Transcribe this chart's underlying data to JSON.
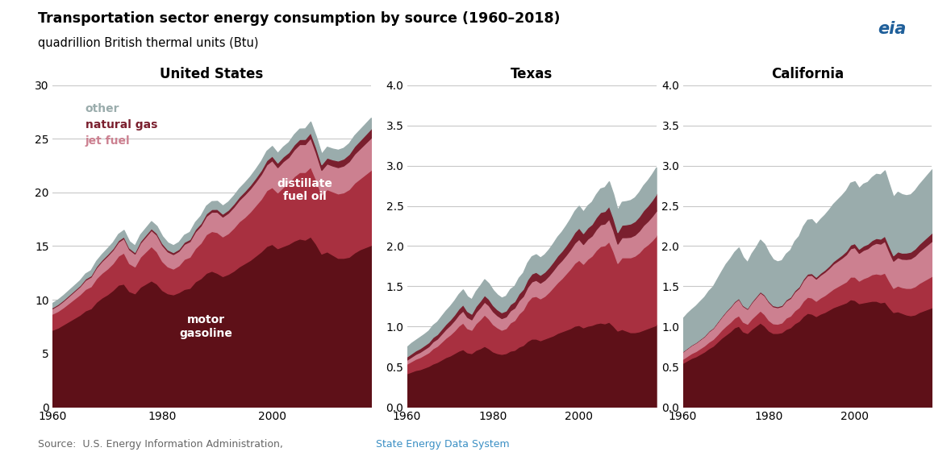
{
  "title": "Transportation sector energy consumption by source (1960–2018)",
  "subtitle": "quadrillion British thermal units (Btu)",
  "panels": [
    "United States",
    "Texas",
    "California"
  ],
  "years": [
    1960,
    1961,
    1962,
    1963,
    1964,
    1965,
    1966,
    1967,
    1968,
    1969,
    1970,
    1971,
    1972,
    1973,
    1974,
    1975,
    1976,
    1977,
    1978,
    1979,
    1980,
    1981,
    1982,
    1983,
    1984,
    1985,
    1986,
    1987,
    1988,
    1989,
    1990,
    1991,
    1992,
    1993,
    1994,
    1995,
    1996,
    1997,
    1998,
    1999,
    2000,
    2001,
    2002,
    2003,
    2004,
    2005,
    2006,
    2007,
    2008,
    2009,
    2010,
    2011,
    2012,
    2013,
    2014,
    2015,
    2016,
    2017,
    2018
  ],
  "colors": {
    "motor_gasoline": "#5e1018",
    "distillate_fuel_oil": "#a83040",
    "jet_fuel": "#cc8090",
    "natural_gas": "#7a1f2e",
    "other": "#9aacac"
  },
  "us_motor_gasoline": [
    7.2,
    7.4,
    7.7,
    8.0,
    8.3,
    8.6,
    9.0,
    9.2,
    9.8,
    10.2,
    10.5,
    10.9,
    11.4,
    11.5,
    10.8,
    10.6,
    11.2,
    11.5,
    11.8,
    11.5,
    10.9,
    10.6,
    10.5,
    10.7,
    11.0,
    11.1,
    11.7,
    12.0,
    12.5,
    12.7,
    12.5,
    12.2,
    12.4,
    12.7,
    13.1,
    13.4,
    13.7,
    14.1,
    14.5,
    15.0,
    15.2,
    14.8,
    15.0,
    15.2,
    15.5,
    15.7,
    15.6,
    15.9,
    15.2,
    14.3,
    14.5,
    14.2,
    13.9,
    13.9,
    14.0,
    14.4,
    14.7,
    14.9,
    15.1
  ],
  "us_distillate": [
    1.5,
    1.55,
    1.6,
    1.7,
    1.8,
    1.9,
    2.0,
    2.05,
    2.2,
    2.3,
    2.4,
    2.5,
    2.7,
    2.9,
    2.6,
    2.5,
    2.8,
    3.0,
    3.2,
    3.0,
    2.7,
    2.5,
    2.4,
    2.5,
    2.8,
    2.9,
    3.1,
    3.3,
    3.6,
    3.7,
    3.8,
    3.7,
    3.8,
    4.0,
    4.2,
    4.3,
    4.5,
    4.7,
    4.9,
    5.2,
    5.3,
    5.2,
    5.5,
    5.7,
    6.0,
    6.2,
    6.3,
    6.5,
    6.0,
    5.5,
    5.8,
    5.9,
    6.0,
    6.1,
    6.3,
    6.5,
    6.6,
    6.8,
    7.0
  ],
  "us_jet_fuel": [
    0.5,
    0.55,
    0.6,
    0.65,
    0.7,
    0.75,
    0.85,
    0.9,
    1.0,
    1.1,
    1.2,
    1.25,
    1.3,
    1.35,
    1.3,
    1.2,
    1.3,
    1.4,
    1.5,
    1.55,
    1.5,
    1.4,
    1.35,
    1.35,
    1.4,
    1.45,
    1.55,
    1.6,
    1.7,
    1.8,
    1.9,
    1.85,
    1.9,
    1.95,
    2.0,
    2.1,
    2.15,
    2.2,
    2.3,
    2.4,
    2.5,
    2.35,
    2.4,
    2.4,
    2.5,
    2.6,
    2.6,
    2.7,
    2.5,
    2.3,
    2.4,
    2.4,
    2.45,
    2.5,
    2.6,
    2.7,
    2.8,
    2.9,
    3.0
  ],
  "us_natural_gas": [
    0.1,
    0.1,
    0.1,
    0.1,
    0.1,
    0.1,
    0.12,
    0.12,
    0.13,
    0.13,
    0.14,
    0.14,
    0.15,
    0.15,
    0.15,
    0.15,
    0.16,
    0.17,
    0.17,
    0.17,
    0.18,
    0.18,
    0.18,
    0.18,
    0.19,
    0.2,
    0.22,
    0.23,
    0.24,
    0.25,
    0.26,
    0.27,
    0.28,
    0.29,
    0.3,
    0.32,
    0.34,
    0.36,
    0.38,
    0.4,
    0.42,
    0.43,
    0.44,
    0.45,
    0.46,
    0.47,
    0.48,
    0.5,
    0.52,
    0.52,
    0.55,
    0.58,
    0.62,
    0.65,
    0.68,
    0.72,
    0.76,
    0.8,
    0.85
  ],
  "us_other": [
    0.4,
    0.42,
    0.43,
    0.44,
    0.45,
    0.46,
    0.47,
    0.48,
    0.5,
    0.52,
    0.55,
    0.56,
    0.58,
    0.6,
    0.6,
    0.6,
    0.62,
    0.63,
    0.65,
    0.65,
    0.65,
    0.65,
    0.65,
    0.65,
    0.66,
    0.67,
    0.68,
    0.7,
    0.72,
    0.73,
    0.75,
    0.75,
    0.76,
    0.77,
    0.78,
    0.79,
    0.8,
    0.82,
    0.85,
    0.87,
    0.9,
    0.9,
    0.92,
    0.93,
    0.95,
    0.97,
    0.98,
    1.0,
    1.0,
    0.98,
    1.0,
    1.0,
    1.0,
    1.0,
    1.0,
    1.0,
    1.0,
    1.0,
    1.0
  ],
  "tx_motor_gasoline": [
    0.42,
    0.44,
    0.46,
    0.47,
    0.49,
    0.51,
    0.54,
    0.56,
    0.59,
    0.62,
    0.64,
    0.67,
    0.7,
    0.72,
    0.68,
    0.67,
    0.71,
    0.73,
    0.76,
    0.73,
    0.69,
    0.67,
    0.66,
    0.67,
    0.7,
    0.71,
    0.75,
    0.77,
    0.82,
    0.85,
    0.85,
    0.83,
    0.85,
    0.87,
    0.89,
    0.92,
    0.94,
    0.96,
    0.98,
    1.01,
    1.02,
    0.99,
    1.01,
    1.02,
    1.04,
    1.05,
    1.04,
    1.06,
    1.01,
    0.95,
    0.97,
    0.95,
    0.93,
    0.93,
    0.94,
    0.96,
    0.98,
    1.0,
    1.02
  ],
  "tx_distillate": [
    0.12,
    0.13,
    0.14,
    0.15,
    0.16,
    0.17,
    0.19,
    0.2,
    0.22,
    0.24,
    0.26,
    0.28,
    0.31,
    0.33,
    0.3,
    0.29,
    0.33,
    0.36,
    0.39,
    0.37,
    0.34,
    0.32,
    0.3,
    0.31,
    0.35,
    0.37,
    0.41,
    0.44,
    0.49,
    0.52,
    0.53,
    0.52,
    0.53,
    0.56,
    0.6,
    0.63,
    0.66,
    0.7,
    0.74,
    0.78,
    0.81,
    0.79,
    0.83,
    0.86,
    0.91,
    0.95,
    0.97,
    1.0,
    0.93,
    0.84,
    0.89,
    0.91,
    0.93,
    0.95,
    0.98,
    1.02,
    1.04,
    1.07,
    1.11
  ],
  "tx_jet_fuel": [
    0.05,
    0.055,
    0.06,
    0.065,
    0.07,
    0.075,
    0.085,
    0.09,
    0.1,
    0.11,
    0.12,
    0.13,
    0.14,
    0.15,
    0.14,
    0.13,
    0.14,
    0.15,
    0.16,
    0.165,
    0.16,
    0.15,
    0.145,
    0.145,
    0.15,
    0.155,
    0.165,
    0.17,
    0.18,
    0.19,
    0.2,
    0.195,
    0.2,
    0.205,
    0.21,
    0.22,
    0.225,
    0.23,
    0.24,
    0.25,
    0.26,
    0.245,
    0.25,
    0.25,
    0.26,
    0.27,
    0.27,
    0.28,
    0.26,
    0.24,
    0.25,
    0.25,
    0.255,
    0.26,
    0.27,
    0.28,
    0.29,
    0.3,
    0.31
  ],
  "tx_natural_gas": [
    0.04,
    0.042,
    0.044,
    0.046,
    0.048,
    0.05,
    0.054,
    0.056,
    0.06,
    0.063,
    0.066,
    0.069,
    0.073,
    0.076,
    0.073,
    0.07,
    0.075,
    0.08,
    0.083,
    0.08,
    0.077,
    0.074,
    0.073,
    0.074,
    0.078,
    0.08,
    0.085,
    0.088,
    0.094,
    0.098,
    0.1,
    0.098,
    0.1,
    0.103,
    0.107,
    0.112,
    0.115,
    0.12,
    0.126,
    0.133,
    0.14,
    0.136,
    0.14,
    0.143,
    0.148,
    0.153,
    0.155,
    0.16,
    0.153,
    0.143,
    0.155,
    0.16,
    0.165,
    0.17,
    0.178,
    0.185,
    0.192,
    0.2,
    0.208
  ],
  "tx_other": [
    0.12,
    0.13,
    0.13,
    0.14,
    0.14,
    0.145,
    0.15,
    0.155,
    0.16,
    0.165,
    0.17,
    0.175,
    0.18,
    0.185,
    0.183,
    0.18,
    0.185,
    0.19,
    0.195,
    0.192,
    0.188,
    0.183,
    0.181,
    0.183,
    0.188,
    0.191,
    0.197,
    0.202,
    0.21,
    0.215,
    0.218,
    0.215,
    0.218,
    0.222,
    0.228,
    0.235,
    0.24,
    0.247,
    0.255,
    0.264,
    0.27,
    0.268,
    0.274,
    0.278,
    0.285,
    0.292,
    0.297,
    0.304,
    0.295,
    0.277,
    0.285,
    0.288,
    0.291,
    0.295,
    0.302,
    0.309,
    0.315,
    0.322,
    0.329
  ],
  "ca_motor_gasoline": [
    0.55,
    0.58,
    0.61,
    0.63,
    0.66,
    0.69,
    0.73,
    0.76,
    0.81,
    0.86,
    0.9,
    0.94,
    0.99,
    1.01,
    0.94,
    0.92,
    0.97,
    1.01,
    1.05,
    1.01,
    0.95,
    0.92,
    0.92,
    0.93,
    0.97,
    0.99,
    1.04,
    1.07,
    1.13,
    1.17,
    1.16,
    1.13,
    1.16,
    1.18,
    1.21,
    1.24,
    1.26,
    1.28,
    1.3,
    1.34,
    1.33,
    1.29,
    1.3,
    1.31,
    1.32,
    1.32,
    1.3,
    1.31,
    1.24,
    1.18,
    1.19,
    1.17,
    1.15,
    1.14,
    1.15,
    1.18,
    1.2,
    1.22,
    1.24
  ],
  "ca_distillate": [
    0.05,
    0.055,
    0.06,
    0.065,
    0.07,
    0.075,
    0.08,
    0.085,
    0.09,
    0.1,
    0.11,
    0.115,
    0.12,
    0.13,
    0.12,
    0.115,
    0.13,
    0.14,
    0.15,
    0.143,
    0.13,
    0.12,
    0.115,
    0.12,
    0.14,
    0.145,
    0.16,
    0.17,
    0.19,
    0.2,
    0.2,
    0.19,
    0.2,
    0.21,
    0.22,
    0.23,
    0.24,
    0.25,
    0.26,
    0.28,
    0.29,
    0.28,
    0.3,
    0.31,
    0.33,
    0.34,
    0.35,
    0.36,
    0.33,
    0.3,
    0.32,
    0.32,
    0.33,
    0.34,
    0.35,
    0.36,
    0.37,
    0.38,
    0.39
  ],
  "ca_jet_fuel": [
    0.09,
    0.095,
    0.1,
    0.105,
    0.11,
    0.115,
    0.13,
    0.135,
    0.15,
    0.16,
    0.175,
    0.185,
    0.195,
    0.205,
    0.196,
    0.186,
    0.2,
    0.213,
    0.226,
    0.233,
    0.226,
    0.212,
    0.205,
    0.205,
    0.212,
    0.219,
    0.233,
    0.24,
    0.254,
    0.268,
    0.282,
    0.275,
    0.282,
    0.289,
    0.296,
    0.31,
    0.317,
    0.324,
    0.338,
    0.352,
    0.366,
    0.345,
    0.352,
    0.352,
    0.366,
    0.38,
    0.38,
    0.394,
    0.366,
    0.338,
    0.352,
    0.352,
    0.359,
    0.366,
    0.38,
    0.394,
    0.408,
    0.422,
    0.436
  ],
  "ca_natural_gas": [
    0.005,
    0.005,
    0.005,
    0.005,
    0.006,
    0.006,
    0.007,
    0.007,
    0.008,
    0.008,
    0.009,
    0.009,
    0.01,
    0.01,
    0.01,
    0.01,
    0.011,
    0.012,
    0.012,
    0.012,
    0.013,
    0.013,
    0.013,
    0.013,
    0.014,
    0.015,
    0.017,
    0.018,
    0.019,
    0.02,
    0.022,
    0.023,
    0.025,
    0.027,
    0.029,
    0.032,
    0.035,
    0.038,
    0.042,
    0.046,
    0.05,
    0.052,
    0.054,
    0.056,
    0.058,
    0.06,
    0.062,
    0.065,
    0.068,
    0.068,
    0.072,
    0.076,
    0.08,
    0.084,
    0.088,
    0.092,
    0.096,
    0.1,
    0.104
  ],
  "ca_other": [
    0.41,
    0.43,
    0.44,
    0.455,
    0.47,
    0.484,
    0.498,
    0.513,
    0.537,
    0.561,
    0.585,
    0.598,
    0.613,
    0.627,
    0.598,
    0.57,
    0.598,
    0.612,
    0.641,
    0.627,
    0.598,
    0.57,
    0.556,
    0.556,
    0.57,
    0.584,
    0.613,
    0.627,
    0.655,
    0.669,
    0.669,
    0.655,
    0.669,
    0.683,
    0.697,
    0.712,
    0.726,
    0.74,
    0.754,
    0.769,
    0.769,
    0.754,
    0.769,
    0.769,
    0.783,
    0.797,
    0.797,
    0.811,
    0.769,
    0.726,
    0.74,
    0.726,
    0.712,
    0.712,
    0.726,
    0.74,
    0.754,
    0.769,
    0.783
  ],
  "us_ylim": [
    0,
    30
  ],
  "us_yticks": [
    0,
    5,
    10,
    15,
    20,
    25,
    30
  ],
  "state_ylim": [
    0.0,
    4.0
  ],
  "state_yticks": [
    0.0,
    0.5,
    1.0,
    1.5,
    2.0,
    2.5,
    3.0,
    3.5,
    4.0
  ],
  "xlim": [
    1960,
    2018
  ],
  "xticks": [
    1960,
    1980,
    2000
  ],
  "background_color": "#ffffff",
  "grid_color": "#c8c8c8"
}
